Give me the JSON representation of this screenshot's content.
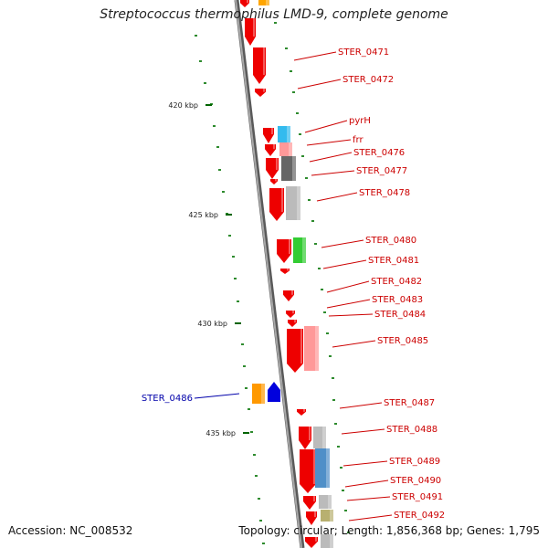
{
  "header": {
    "title": "Streptococcus thermophilus LMD-9, complete genome"
  },
  "footer": {
    "accession": "Accession: NC_008532",
    "summary": "Topology: circular; Length: 1,856,368 bp; Genes: 1,795"
  },
  "colors": {
    "backbone": "#808080",
    "gene_red": "#ee0000",
    "label_red": "#cc0000",
    "label_blue": "#0000aa",
    "gc_tick": "#2e8b2e"
  },
  "scale_ticks": [
    {
      "label": "420 kbp"
    },
    {
      "label": "425 kbp"
    },
    {
      "label": "430 kbp"
    },
    {
      "label": "435 kbp"
    }
  ],
  "genes": [
    {
      "label": "STER_0471"
    },
    {
      "label": "STER_0472"
    },
    {
      "label": "pyrH"
    },
    {
      "label": "frr"
    },
    {
      "label": "STER_0476"
    },
    {
      "label": "STER_0477"
    },
    {
      "label": "STER_0478"
    },
    {
      "label": "STER_0480"
    },
    {
      "label": "STER_0481"
    },
    {
      "label": "STER_0482"
    },
    {
      "label": "STER_0483"
    },
    {
      "label": "STER_0484"
    },
    {
      "label": "STER_0485"
    },
    {
      "label": "STER_0486",
      "strand": "reverse"
    },
    {
      "label": "STER_0487"
    },
    {
      "label": "STER_0488"
    },
    {
      "label": "STER_0489"
    },
    {
      "label": "STER_0490"
    },
    {
      "label": "STER_0491"
    },
    {
      "label": "STER_0492"
    }
  ]
}
